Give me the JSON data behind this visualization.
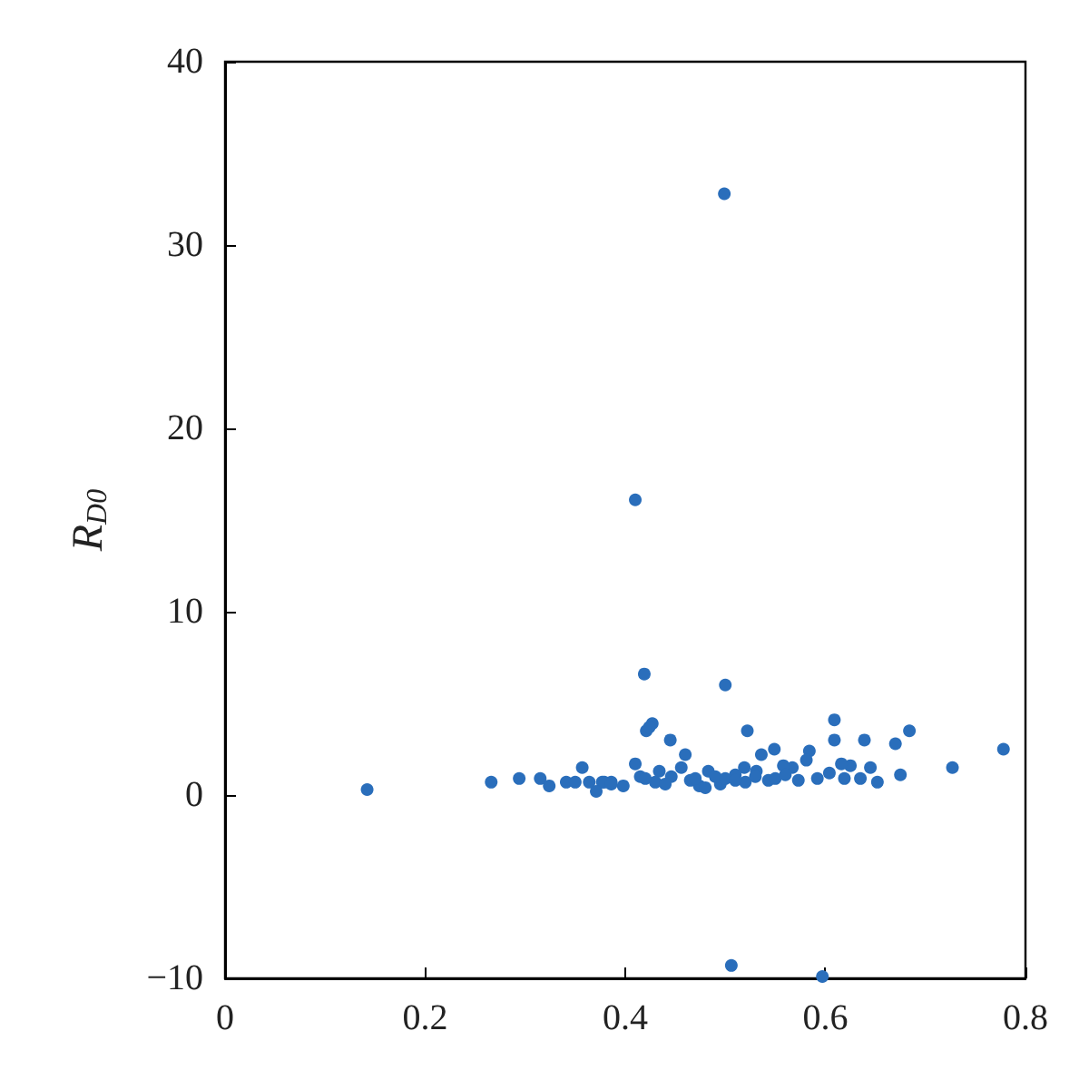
{
  "chart_data": {
    "type": "scatter",
    "ylabel": "R$_{D0}$",
    "color": "#2a6ebb",
    "marker": "circle",
    "grid": false,
    "x": [
      0.499,
      0.41,
      0.506,
      0.597,
      0.419,
      0.5,
      0.427,
      0.421,
      0.424,
      0.445,
      0.46,
      0.41,
      0.415,
      0.522,
      0.536,
      0.549,
      0.584,
      0.581,
      0.609,
      0.609,
      0.639,
      0.684,
      0.67,
      0.778,
      0.727,
      0.675,
      0.652,
      0.645,
      0.635,
      0.619,
      0.625,
      0.616,
      0.604,
      0.592,
      0.573,
      0.567,
      0.558,
      0.543,
      0.531,
      0.519,
      0.51,
      0.495,
      0.483,
      0.474,
      0.465,
      0.456,
      0.446,
      0.434,
      0.43,
      0.398,
      0.386,
      0.377,
      0.142,
      0.266,
      0.294,
      0.315,
      0.324,
      0.341,
      0.35,
      0.357,
      0.364,
      0.371,
      0.379,
      0.386,
      0.49,
      0.5,
      0.52,
      0.53,
      0.47,
      0.48,
      0.55,
      0.56,
      0.51,
      0.44,
      0.42
    ],
    "values": [
      32.8,
      16.1,
      -9.3,
      -9.9,
      6.6,
      6.0,
      3.9,
      3.5,
      3.7,
      3.0,
      2.2,
      1.7,
      1.0,
      3.5,
      2.2,
      2.5,
      2.4,
      1.9,
      4.1,
      3.0,
      3.0,
      3.5,
      2.8,
      2.5,
      1.5,
      1.1,
      0.7,
      1.5,
      0.9,
      0.9,
      1.6,
      1.7,
      1.2,
      0.9,
      0.8,
      1.5,
      1.6,
      0.8,
      1.3,
      1.5,
      1.1,
      0.6,
      1.3,
      0.5,
      0.8,
      1.5,
      1.0,
      1.3,
      0.7,
      0.5,
      0.7,
      0.7,
      0.3,
      0.7,
      0.9,
      0.9,
      0.5,
      0.7,
      0.7,
      1.5,
      0.7,
      0.2,
      0.7,
      0.6,
      1.0,
      0.9,
      0.7,
      1.0,
      0.9,
      0.4,
      0.9,
      1.1,
      0.8,
      0.6,
      0.9
    ],
    "xlim": [
      0,
      0.8
    ],
    "xticks": [
      0,
      0.2,
      0.4,
      0.6,
      0.8
    ],
    "ylim": [
      -10,
      40
    ],
    "yticks": [
      -10,
      0,
      10,
      20,
      30,
      40
    ]
  }
}
